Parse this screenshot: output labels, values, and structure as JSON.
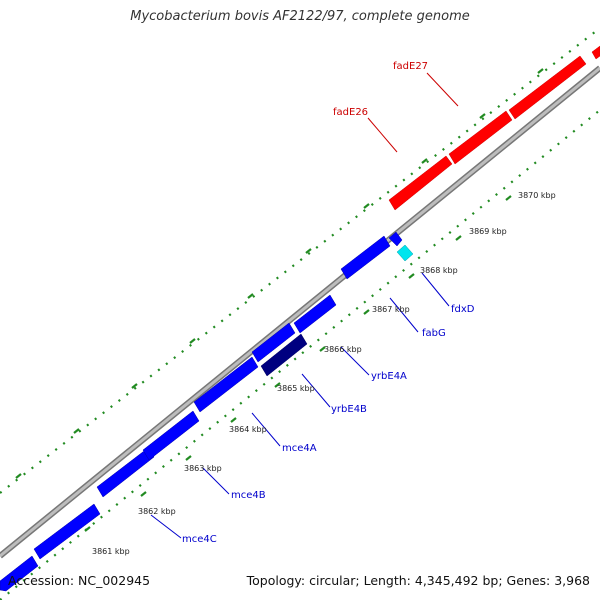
{
  "title": "Mycobacterium bovis AF2122/97, complete genome",
  "footer": {
    "accession": "Accession: NC_002945",
    "summary": "Topology: circular; Length: 4,345,492 bp; Genes: 3,968"
  },
  "colors": {
    "forward_gene": "#ff0000",
    "reverse_gene": "#0000ff",
    "highlight_gene": "#000080",
    "small_gene": "#00e5ee",
    "backbone": "#999999",
    "tick_marks": "#228b22",
    "forward_label": "#cc0000",
    "reverse_label": "#0000cc"
  },
  "ticks": [
    {
      "label": "3861 kbp"
    },
    {
      "label": "3862 kbp"
    },
    {
      "label": "3863 kbp"
    },
    {
      "label": "3864 kbp"
    },
    {
      "label": "3865 kbp"
    },
    {
      "label": "3866 kbp"
    },
    {
      "label": "3867 kbp"
    },
    {
      "label": "3868 kbp"
    },
    {
      "label": "3869 kbp"
    },
    {
      "label": "3870 kbp"
    }
  ],
  "gene_labels": {
    "forward": [
      "fadE26",
      "fadE27"
    ],
    "reverse": [
      "mce4C",
      "mce4B",
      "mce4A",
      "yrbE4B",
      "yrbE4A",
      "fabG",
      "fdxD"
    ]
  }
}
